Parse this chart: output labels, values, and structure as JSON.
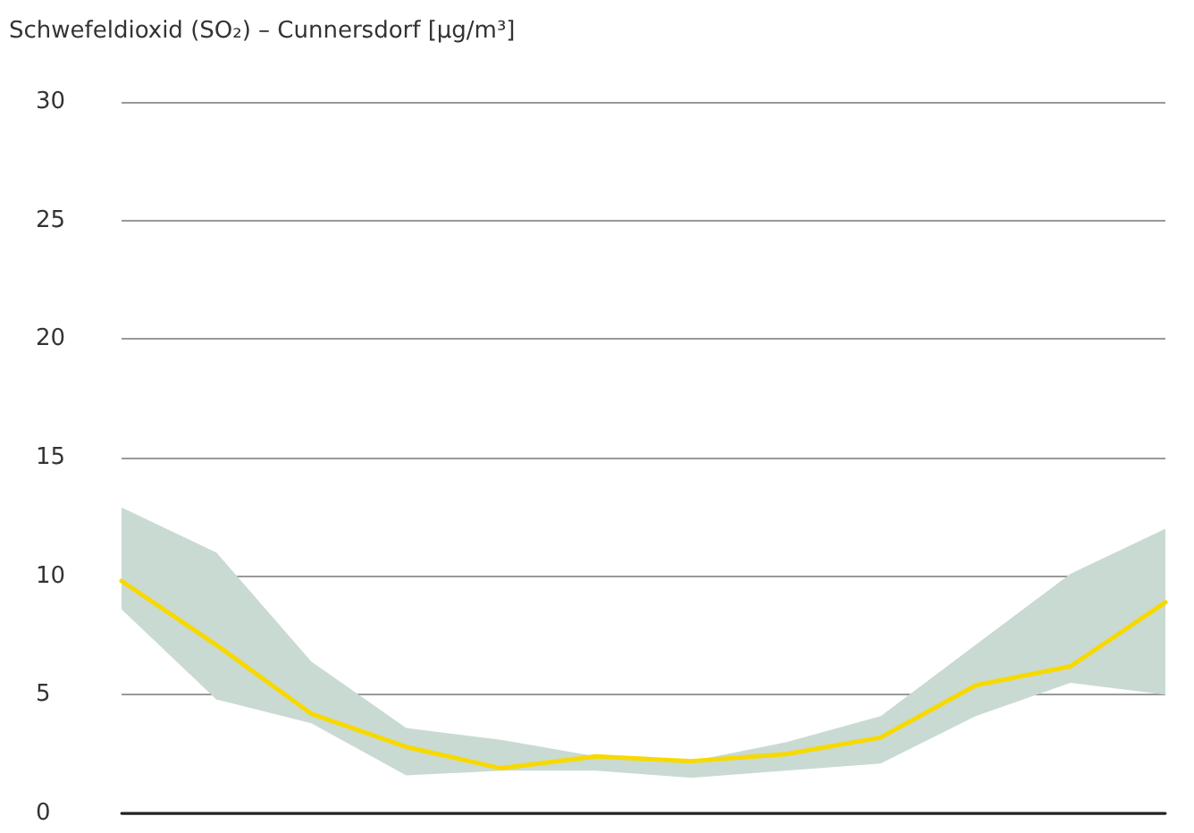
{
  "chart_data": {
    "type": "line",
    "title": "Schwefeldioxid (SO₂) – Cunnersdorf [µg/m³]",
    "categories": [
      null,
      null,
      null,
      null,
      null,
      null,
      null,
      null,
      null,
      null,
      null,
      null
    ],
    "series": [
      {
        "color": "#f7d900",
        "values": [
          9.8,
          7.1,
          4.2,
          2.8,
          1.9,
          2.4,
          2.2,
          2.5,
          3.2,
          5.4,
          6.2,
          8.9
        ],
        "lower": [
          8.6,
          4.8,
          3.8,
          1.6,
          1.8,
          1.8,
          1.5,
          1.8,
          2.1,
          4.1,
          5.5,
          5.0
        ],
        "upper": [
          12.9,
          11.0,
          6.4,
          3.6,
          3.1,
          2.4,
          2.2,
          3.0,
          4.1,
          7.1,
          10.1,
          12.0
        ]
      }
    ],
    "ylim": [
      0,
      30
    ],
    "yticks": [
      0,
      5,
      10,
      15,
      20,
      25,
      30
    ],
    "grid": "y",
    "tick_labels": "y",
    "marker": "none",
    "line_style": "solid"
  }
}
